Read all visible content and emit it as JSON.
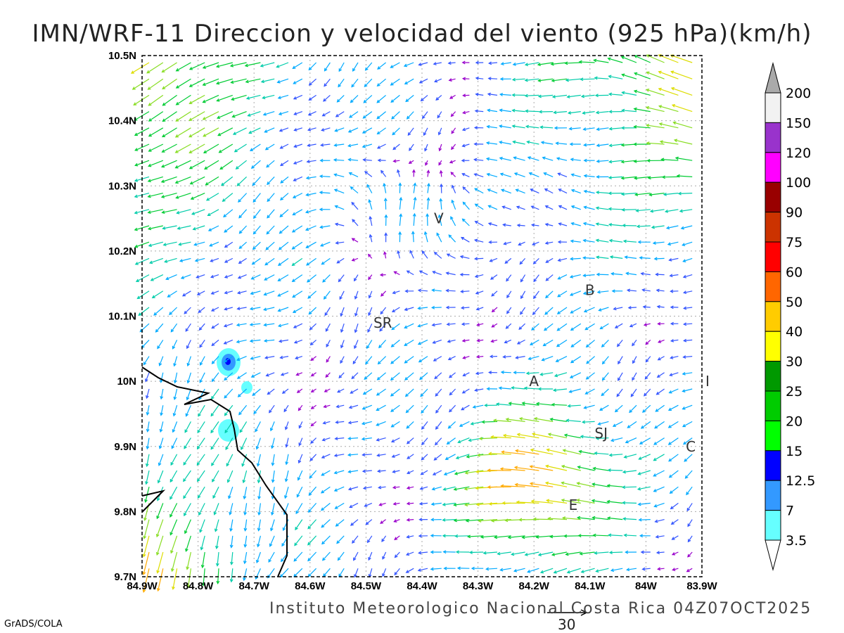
{
  "title": "IMN/WRF-11 Direccion y velocidad del viento (925 hPa)(km/h)",
  "footer": "Instituto Meteorologico Nacional Costa Rica 04Z07OCT2025",
  "credit": "GrADS/COLA",
  "reference_vector": {
    "label": "30",
    "value": 30
  },
  "axes": {
    "lon_ticks": [
      "84.9W",
      "84.8W",
      "84.7W",
      "84.6W",
      "84.5W",
      "84.4W",
      "84.3W",
      "84.2W",
      "84.1W",
      "84W",
      "83.9W"
    ],
    "lat_ticks": [
      "10.5N",
      "10.4N",
      "10.3N",
      "10.2N",
      "10.1N",
      "10N",
      "9.9N",
      "9.8N",
      "9.7N"
    ],
    "lon_range": [
      -84.9,
      -83.9
    ],
    "lat_range": [
      9.7,
      10.5
    ]
  },
  "cities": [
    {
      "label": "V",
      "lon": -84.37,
      "lat": 10.25
    },
    {
      "label": "SR",
      "lon": -84.47,
      "lat": 10.09
    },
    {
      "label": "B",
      "lon": -84.1,
      "lat": 10.14
    },
    {
      "label": "A",
      "lon": -84.2,
      "lat": 10.0
    },
    {
      "label": "SJ",
      "lon": -84.08,
      "lat": 9.92
    },
    {
      "label": "C",
      "lon": -83.92,
      "lat": 9.9
    },
    {
      "label": "E",
      "lon": -84.13,
      "lat": 9.81
    },
    {
      "label": "I",
      "lon": -83.89,
      "lat": 10.0
    }
  ],
  "colorbar": {
    "labels": [
      "3.5",
      "7",
      "12.5",
      "15",
      "20",
      "25",
      "30",
      "40",
      "50",
      "60",
      "75",
      "90",
      "100",
      "120",
      "150",
      "200"
    ],
    "colors": [
      "#66ffff",
      "#3399ff",
      "#0000ff",
      "#00ff00",
      "#00cc00",
      "#009900",
      "#ffff00",
      "#ffcc00",
      "#ff6600",
      "#ff0000",
      "#cc3300",
      "#990000",
      "#ff00ff",
      "#9933cc",
      "#f2f2f2"
    ],
    "over_color": "#aaaaaa",
    "under_color": "#ffffff"
  },
  "arrow_speed_colors": [
    "#9900cc",
    "#3355ff",
    "#00aaff",
    "#00ccaa",
    "#00cc33",
    "#88dd22",
    "#dddd00",
    "#ffaa00",
    "#ff6622",
    "#ff2222"
  ]
}
